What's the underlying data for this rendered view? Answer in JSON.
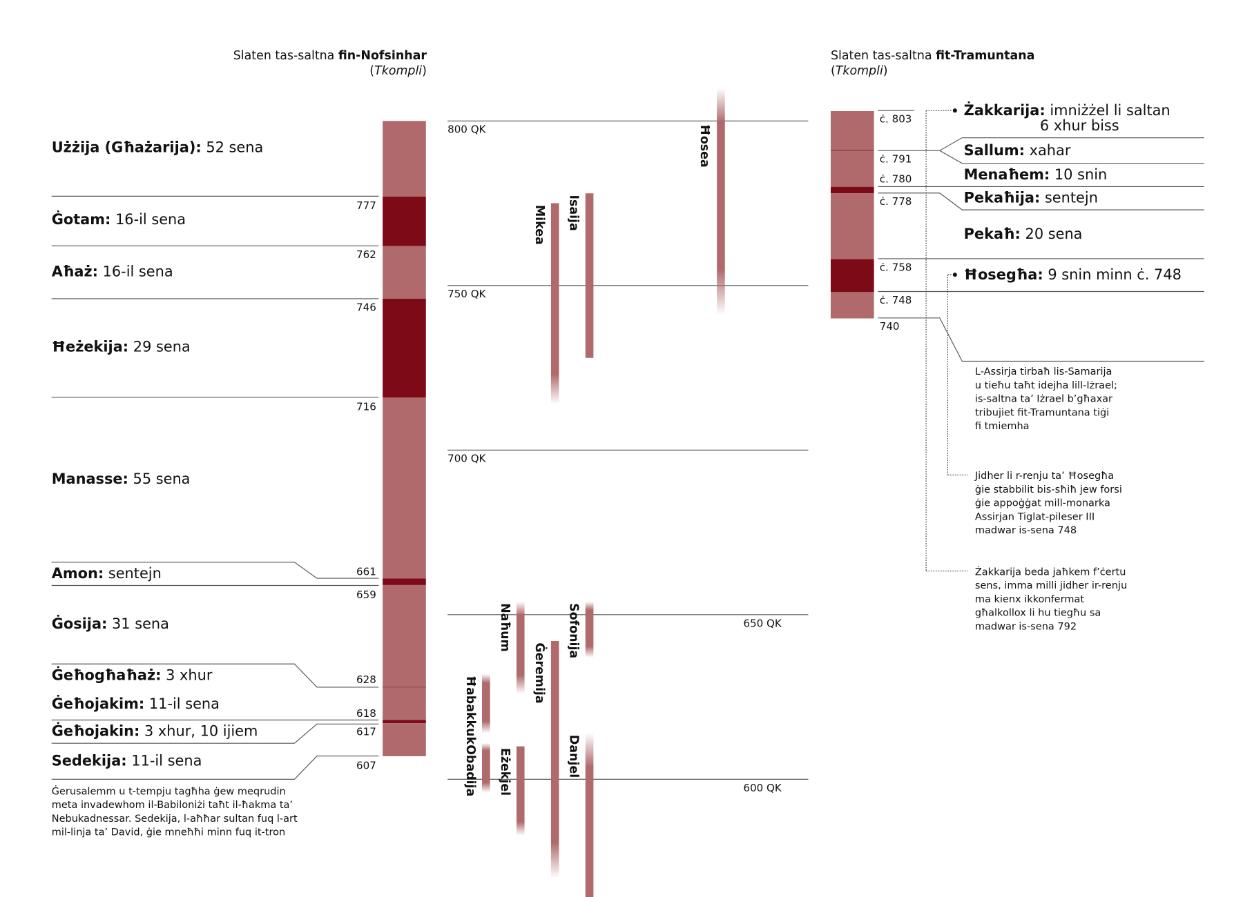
{
  "colors": {
    "light": "#b06a6b",
    "dark": "#7d0a17",
    "line": "#555555"
  },
  "south": {
    "title_prefix": "Slaten tas-saltna ",
    "title_bold": "fin-Nofsinhar",
    "subtitle_open": "(",
    "subtitle_italic": "Tkompli",
    "subtitle_close": ")",
    "kings": [
      {
        "name": "Użżija (Għażarija):",
        "reign": " 52 sena",
        "from": 800,
        "to": 777,
        "shade": "light"
      },
      {
        "name": "Ġotam:",
        "reign": " 16-il sena",
        "from": 777,
        "to": 762,
        "shade": "dark"
      },
      {
        "name": "Aħaż:",
        "reign": " 16-il sena",
        "from": 762,
        "to": 746,
        "shade": "light"
      },
      {
        "name": "Ħeżekija:",
        "reign": " 29 sena",
        "from": 746,
        "to": 716,
        "shade": "dark"
      },
      {
        "name": "Manasse:",
        "reign": " 55 sena",
        "from": 716,
        "to": 661,
        "shade": "light"
      },
      {
        "name": "Amon:",
        "reign": " sentejn",
        "from": 661,
        "to": 659,
        "shade": "dark"
      },
      {
        "name": "Ġosija:",
        "reign": " 31 sena",
        "from": 659,
        "to": 628,
        "shade": "light"
      },
      {
        "name": "Ġeħogħaħaż:",
        "reign": " 3 xhur",
        "from": 628,
        "to": 628,
        "shade": "light"
      },
      {
        "name": "Ġeħojakim:",
        "reign": " 11-il sena",
        "from": 628,
        "to": 618,
        "shade": "light"
      },
      {
        "name": "Ġeħojakin:",
        "reign": " 3 xhur, 10 ijiem",
        "from": 618,
        "to": 617,
        "shade": "dark"
      },
      {
        "name": "Sedekija:",
        "reign": " 11-il sena",
        "from": 617,
        "to": 607,
        "shade": "light"
      }
    ],
    "year_labels": [
      "777",
      "762",
      "746",
      "716",
      "661",
      "659",
      "628",
      "618",
      "617",
      "607"
    ],
    "note": [
      "Ġerusalemm u t-tempju tagħha ġew meqrudin",
      "meta invadewhom il-Babiloniżi taħt il-ħakma ta’",
      "Nebukadnessar. Sedekija, l-aħħar sultan fuq l-art",
      "mil-linja ta’ David, ġie mneħħi minn fuq it-tron"
    ]
  },
  "timeline": {
    "ticks": [
      {
        "year": 800,
        "label": "800 QK"
      },
      {
        "year": 750,
        "label": "750 QK"
      },
      {
        "year": 700,
        "label": "700 QK"
      },
      {
        "year": 650,
        "label": "650 QK"
      },
      {
        "year": 600,
        "label": "600 QK"
      }
    ],
    "prophets": [
      {
        "name": "Ħosea",
        "from": 810,
        "to": 741,
        "fade": "both"
      },
      {
        "name": "Isaija",
        "from": 778,
        "to": 728,
        "fade": "none"
      },
      {
        "name": "Mikea",
        "from": 775,
        "to": 714,
        "fade": "bottom"
      },
      {
        "name": "Naħum",
        "from": 654,
        "to": 626,
        "fade": "both"
      },
      {
        "name": "Sofonija",
        "from": 654,
        "to": 637,
        "fade": "both"
      },
      {
        "name": "Ġeremija",
        "from": 642,
        "to": 570,
        "fade": "bottom"
      },
      {
        "name": "Ħabakkuk",
        "from": 632,
        "to": 614,
        "fade": "both"
      },
      {
        "name": "Obadija",
        "from": 611,
        "to": 596,
        "fade": "both"
      },
      {
        "name": "Eżekjel",
        "from": 610,
        "to": 583,
        "fade": "bottom"
      },
      {
        "name": "Danjel",
        "from": 614,
        "to": 559,
        "fade": "top"
      }
    ]
  },
  "north": {
    "title_prefix": "Slaten tas-saltna ",
    "title_bold": "fit-Tramuntana",
    "subtitle_open": "(",
    "subtitle_italic": "Tkompli",
    "subtitle_close": ")",
    "segments": [
      {
        "from": 803,
        "to": 791,
        "shade": "light"
      },
      {
        "from": 791,
        "to": 780,
        "shade": "light"
      },
      {
        "from": 780,
        "to": 778,
        "shade": "dark"
      },
      {
        "from": 778,
        "to": 758,
        "shade": "light"
      },
      {
        "from": 758,
        "to": 748,
        "shade": "dark"
      },
      {
        "from": 748,
        "to": 740,
        "shade": "light"
      }
    ],
    "year_labels": [
      "ċ. 803",
      "ċ. 791",
      "ċ. 780",
      "ċ. 778",
      "ċ. 758",
      "ċ. 748",
      "740"
    ],
    "kings": [
      {
        "name": "Żakkarija:",
        "reign": " imniżżel li saltan",
        "reign2": "6 xhur biss"
      },
      {
        "name": "Sallum:",
        "reign": " xahar"
      },
      {
        "name": "Menaħem:",
        "reign": " 10 snin"
      },
      {
        "name": "Pekaħija:",
        "reign": " sentejn"
      },
      {
        "name": "Pekaħ:",
        "reign": " 20 sena"
      },
      {
        "name": "Ħosegħa:",
        "reign": " 9 snin minn ċ. 748"
      }
    ],
    "notes": [
      [
        "L-Assirja tirbaħ lis-Samarija",
        "u tieħu taħt idejha lill-Iżrael;",
        "is-saltna ta’ Iżrael b’għaxar",
        "tribujiet fit-Tramuntana tiġi",
        "fi tmiemha"
      ],
      [
        "Jidher li r-renju ta’ Ħosegħa",
        "ġie stabbilit bis-sħiħ jew forsi",
        "ġie appoġġat mill-monarka",
        "Assirjan Tiglat-pileser III",
        "madwar is-sena 748"
      ],
      [
        "Żakkarija beda jaħkem f’ċertu",
        "sens, imma milli jidher ir-renju",
        "ma kienx ikkonfermat",
        "għalkollox li hu tiegħu sa",
        "madwar is-sena 792"
      ]
    ]
  }
}
